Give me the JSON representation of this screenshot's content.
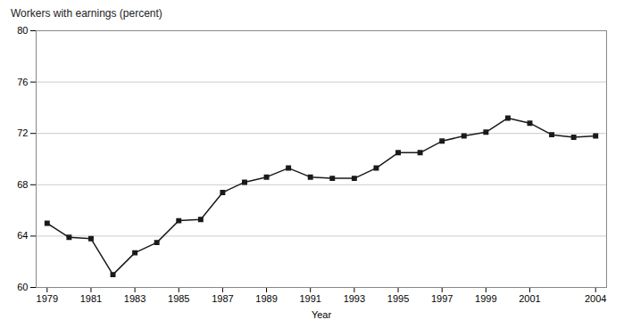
{
  "chart_data": {
    "type": "line",
    "x": [
      1979,
      1980,
      1981,
      1982,
      1983,
      1984,
      1985,
      1986,
      1987,
      1988,
      1989,
      1990,
      1991,
      1992,
      1993,
      1994,
      1995,
      1996,
      1997,
      1998,
      1999,
      2000,
      2001,
      2002,
      2003,
      2004
    ],
    "values": [
      65.0,
      63.9,
      63.8,
      61.0,
      62.7,
      63.5,
      65.2,
      65.3,
      67.4,
      68.2,
      68.6,
      69.3,
      68.6,
      68.5,
      68.5,
      69.3,
      70.5,
      70.5,
      71.4,
      71.8,
      72.1,
      73.2,
      72.8,
      71.9,
      71.7,
      71.8
    ],
    "xlabel": "Year",
    "ylabel": "Workers with earnings (percent)",
    "xlim": [
      1978.5,
      2004.5
    ],
    "ylim": [
      60,
      80
    ],
    "xticks": [
      1979,
      1981,
      1983,
      1985,
      1987,
      1989,
      1991,
      1993,
      1995,
      1997,
      1999,
      2001,
      2004
    ],
    "yticks": [
      60,
      64,
      68,
      72,
      76,
      80
    ],
    "grid": true,
    "color": "#1a1a1a",
    "marker": "square"
  }
}
